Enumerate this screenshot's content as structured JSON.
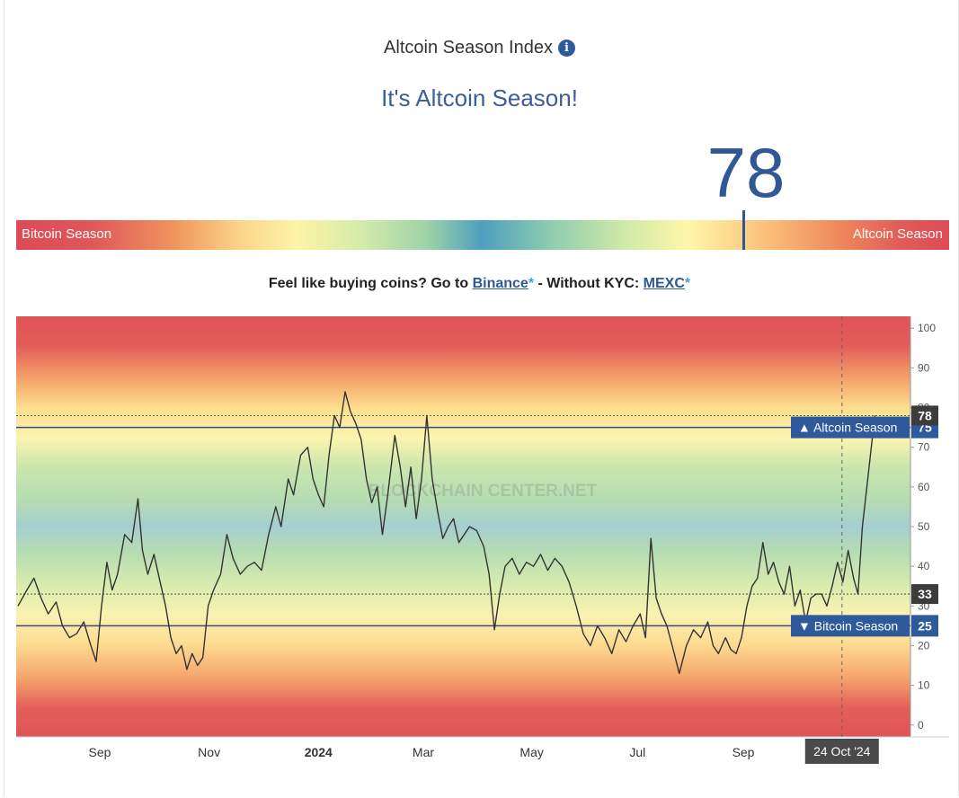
{
  "header": {
    "title": "Altcoin Season Index",
    "info_icon": "info-icon",
    "headline": "It's Altcoin Season!",
    "value": "78"
  },
  "gauge": {
    "left_label": "Bitcoin Season",
    "right_label": "Altcoin Season",
    "marker_value": 78
  },
  "promo": {
    "text_1": "Feel like buying coins? Go to",
    "link_1": "Binance",
    "star": "*",
    "text_2": "- Without KYC:",
    "link_2": "MEXC"
  },
  "chart_data": {
    "type": "line",
    "title": "Altcoin Season Index",
    "watermark": "BLOCKCHAIN CENTER.NET",
    "ylim": [
      -3,
      103
    ],
    "yticks": [
      0,
      10,
      20,
      30,
      40,
      50,
      60,
      70,
      80,
      90,
      100
    ],
    "ytick_labels": [
      "0",
      "10",
      "20",
      "30",
      "40",
      "50",
      "60",
      "70",
      "80",
      "90",
      "100"
    ],
    "xticks": [
      {
        "label": "Sep",
        "pos": 0.092,
        "bold": false
      },
      {
        "label": "Nov",
        "pos": 0.215,
        "bold": false
      },
      {
        "label": "2024",
        "pos": 0.338,
        "bold": true
      },
      {
        "label": "Mar",
        "pos": 0.456,
        "bold": false
      },
      {
        "label": "May",
        "pos": 0.578,
        "bold": false
      },
      {
        "label": "Jul",
        "pos": 0.697,
        "bold": false
      },
      {
        "label": "Sep",
        "pos": 0.816,
        "bold": false
      }
    ],
    "cursor_date": "24 Oct '24",
    "cursor_pos": 0.927,
    "reference_lines": [
      {
        "name": "Altcoin Season",
        "value": 75,
        "arrow": "▲"
      },
      {
        "name": "Bitcoin Season",
        "value": 25,
        "arrow": "▼"
      }
    ],
    "markers": [
      {
        "label": "78",
        "value": 78
      },
      {
        "label": "33",
        "value": 33
      }
    ],
    "series": [
      {
        "name": "Altcoin Season Index",
        "values": [
          [
            0.0,
            30
          ],
          [
            0.01,
            34
          ],
          [
            0.018,
            37
          ],
          [
            0.026,
            32
          ],
          [
            0.034,
            28
          ],
          [
            0.043,
            31
          ],
          [
            0.05,
            25
          ],
          [
            0.058,
            22
          ],
          [
            0.066,
            23
          ],
          [
            0.074,
            26
          ],
          [
            0.082,
            20
          ],
          [
            0.088,
            16
          ],
          [
            0.094,
            30
          ],
          [
            0.1,
            41
          ],
          [
            0.106,
            34
          ],
          [
            0.112,
            38
          ],
          [
            0.12,
            48
          ],
          [
            0.128,
            46
          ],
          [
            0.135,
            57
          ],
          [
            0.14,
            44
          ],
          [
            0.146,
            38
          ],
          [
            0.153,
            43
          ],
          [
            0.16,
            36
          ],
          [
            0.166,
            30
          ],
          [
            0.172,
            22
          ],
          [
            0.178,
            18
          ],
          [
            0.184,
            20
          ],
          [
            0.19,
            14
          ],
          [
            0.196,
            18
          ],
          [
            0.202,
            15
          ],
          [
            0.208,
            17
          ],
          [
            0.214,
            30
          ],
          [
            0.22,
            34
          ],
          [
            0.228,
            38
          ],
          [
            0.235,
            48
          ],
          [
            0.242,
            42
          ],
          [
            0.25,
            38
          ],
          [
            0.258,
            40
          ],
          [
            0.266,
            41
          ],
          [
            0.274,
            39
          ],
          [
            0.282,
            48
          ],
          [
            0.29,
            55
          ],
          [
            0.296,
            50
          ],
          [
            0.304,
            62
          ],
          [
            0.31,
            58
          ],
          [
            0.318,
            68
          ],
          [
            0.326,
            70
          ],
          [
            0.332,
            62
          ],
          [
            0.338,
            58
          ],
          [
            0.344,
            55
          ],
          [
            0.35,
            68
          ],
          [
            0.356,
            78
          ],
          [
            0.362,
            75
          ],
          [
            0.368,
            84
          ],
          [
            0.374,
            79
          ],
          [
            0.38,
            76
          ],
          [
            0.386,
            72
          ],
          [
            0.392,
            62
          ],
          [
            0.398,
            56
          ],
          [
            0.404,
            60
          ],
          [
            0.41,
            48
          ],
          [
            0.416,
            58
          ],
          [
            0.424,
            73
          ],
          [
            0.43,
            65
          ],
          [
            0.436,
            55
          ],
          [
            0.442,
            65
          ],
          [
            0.448,
            52
          ],
          [
            0.454,
            62
          ],
          [
            0.46,
            78
          ],
          [
            0.466,
            62
          ],
          [
            0.472,
            54
          ],
          [
            0.478,
            47
          ],
          [
            0.484,
            50
          ],
          [
            0.49,
            52
          ],
          [
            0.496,
            46
          ],
          [
            0.502,
            48
          ],
          [
            0.508,
            50
          ],
          [
            0.516,
            49
          ],
          [
            0.524,
            45
          ],
          [
            0.53,
            38
          ],
          [
            0.536,
            24
          ],
          [
            0.542,
            33
          ],
          [
            0.548,
            40
          ],
          [
            0.556,
            42
          ],
          [
            0.564,
            38
          ],
          [
            0.572,
            41
          ],
          [
            0.58,
            40
          ],
          [
            0.588,
            43
          ],
          [
            0.596,
            39
          ],
          [
            0.604,
            42
          ],
          [
            0.612,
            40
          ],
          [
            0.62,
            36
          ],
          [
            0.628,
            30
          ],
          [
            0.636,
            23
          ],
          [
            0.644,
            20
          ],
          [
            0.652,
            25
          ],
          [
            0.66,
            22
          ],
          [
            0.668,
            18
          ],
          [
            0.676,
            24
          ],
          [
            0.684,
            21
          ],
          [
            0.692,
            25
          ],
          [
            0.7,
            28
          ],
          [
            0.706,
            22
          ],
          [
            0.712,
            47
          ],
          [
            0.718,
            32
          ],
          [
            0.724,
            28
          ],
          [
            0.73,
            25
          ],
          [
            0.736,
            20
          ],
          [
            0.744,
            13
          ],
          [
            0.752,
            20
          ],
          [
            0.76,
            24
          ],
          [
            0.768,
            22
          ],
          [
            0.776,
            26
          ],
          [
            0.782,
            20
          ],
          [
            0.788,
            18
          ],
          [
            0.796,
            22
          ],
          [
            0.802,
            19
          ],
          [
            0.808,
            18
          ],
          [
            0.814,
            22
          ],
          [
            0.82,
            30
          ],
          [
            0.826,
            35
          ],
          [
            0.832,
            37
          ],
          [
            0.838,
            46
          ],
          [
            0.844,
            38
          ],
          [
            0.85,
            41
          ],
          [
            0.856,
            36
          ],
          [
            0.862,
            33
          ],
          [
            0.868,
            40
          ],
          [
            0.874,
            30
          ],
          [
            0.88,
            34
          ],
          [
            0.886,
            26
          ],
          [
            0.892,
            32
          ],
          [
            0.898,
            33
          ],
          [
            0.904,
            33
          ],
          [
            0.91,
            30
          ],
          [
            0.916,
            35
          ],
          [
            0.922,
            41
          ],
          [
            0.928,
            36
          ],
          [
            0.934,
            44
          ],
          [
            0.94,
            37
          ],
          [
            0.945,
            33
          ],
          [
            0.95,
            50
          ],
          [
            0.955,
            60
          ],
          [
            0.96,
            70
          ],
          [
            0.964,
            78
          ]
        ]
      }
    ]
  }
}
